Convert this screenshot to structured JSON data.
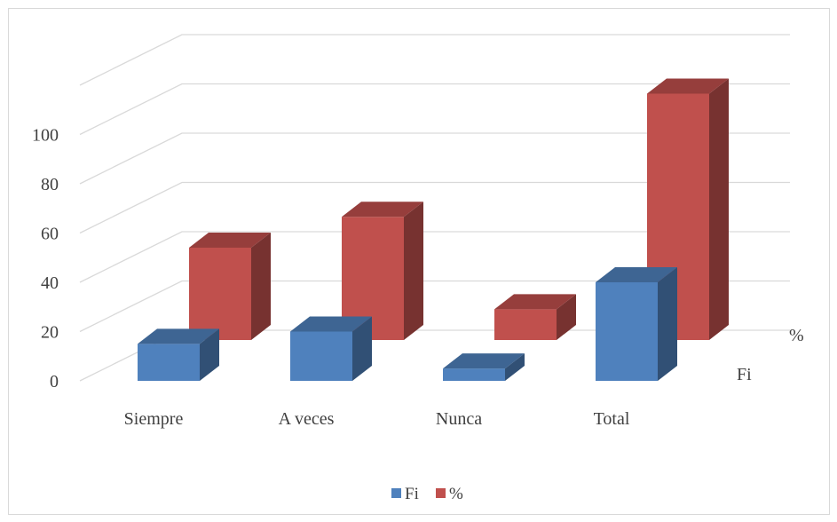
{
  "chart_data": {
    "type": "bar",
    "subtype": "3d-clustered-column",
    "categories": [
      "Siempre",
      "A veces",
      "Nunca",
      "Total"
    ],
    "series": [
      {
        "name": "Fi",
        "values": [
          15,
          20,
          5,
          40
        ],
        "color": "#4F81BD"
      },
      {
        "name": "%",
        "values": [
          37.5,
          50,
          12.5,
          100
        ],
        "color": "#C0504D"
      }
    ],
    "ylim": [
      0,
      120
    ],
    "yticks": [
      0,
      20,
      40,
      60,
      80,
      100
    ],
    "grid": true,
    "legend": "bottom",
    "depth_axis_labels": [
      "Fi",
      "%"
    ]
  }
}
